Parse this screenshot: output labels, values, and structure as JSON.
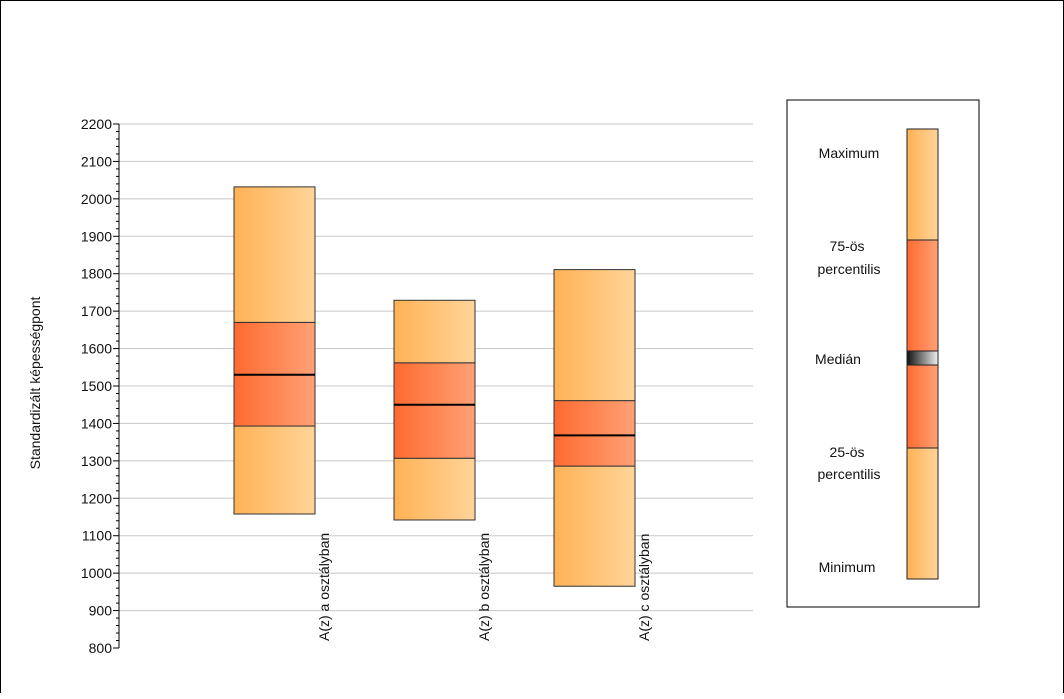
{
  "chart_data": {
    "type": "box",
    "ylabel": "Standardizált képességpont",
    "ylim": [
      800,
      2200
    ],
    "y_major_step": 100,
    "y_minor_step": 20,
    "yticks": [
      800,
      900,
      1000,
      1100,
      1200,
      1300,
      1400,
      1500,
      1600,
      1700,
      1800,
      1900,
      2000,
      2100,
      2200
    ],
    "grid": true,
    "categories": [
      "A(z) a osztályban",
      "A(z) b osztályban",
      "A(z) c osztályban"
    ],
    "boxes": [
      {
        "min": 1158,
        "q1": 1393,
        "median": 1530,
        "q3": 1670,
        "max": 2032
      },
      {
        "min": 1142,
        "q1": 1307,
        "median": 1450,
        "q3": 1562,
        "max": 1729
      },
      {
        "min": 965,
        "q1": 1286,
        "median": 1368,
        "q3": 1461,
        "max": 1811
      }
    ],
    "colors": {
      "outer_light": "#ffd49a",
      "outer_dark": "#ffb255",
      "inner_light": "#ffa176",
      "inner_dark": "#ff6a30",
      "grid": "#c8c8c8"
    },
    "legend": {
      "placement": "right",
      "labels": {
        "maximum": "Maximum",
        "p75": [
          "75-ös",
          "percentilis"
        ],
        "median": "Medián",
        "p25": [
          "25-ös",
          "percentilis"
        ],
        "minimum": "Minimum"
      }
    }
  }
}
